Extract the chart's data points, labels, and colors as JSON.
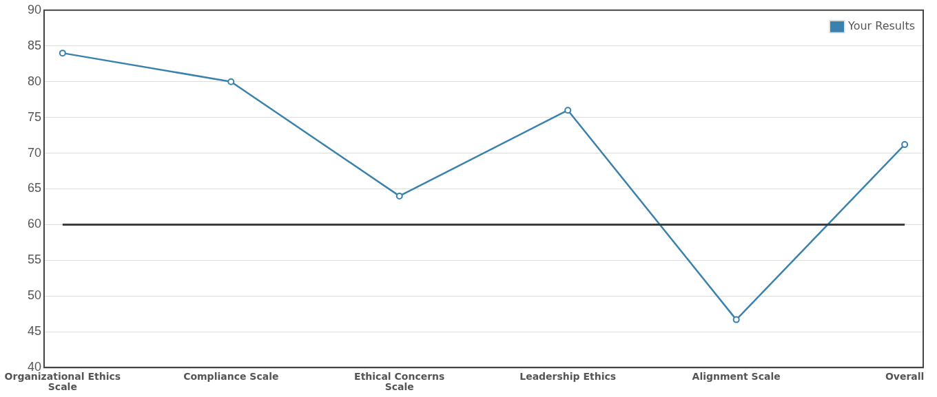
{
  "chart_data": {
    "type": "line",
    "categories": [
      "Organizational Ethics Scale",
      "Compliance Scale",
      "Ethical Concerns Scale",
      "Leadership Ethics",
      "Alignment Scale",
      "Overall"
    ],
    "series": [
      {
        "name": "Your Results",
        "color": "#3a82ad",
        "values": [
          84,
          80,
          64,
          76,
          46.7,
          71.2
        ]
      }
    ],
    "ylim": [
      40,
      90
    ],
    "yticks": [
      40,
      45,
      50,
      55,
      60,
      65,
      70,
      75,
      80,
      85,
      90
    ],
    "ref_lines": [
      {
        "axis": "y",
        "value": 60,
        "color": "#3c3c3c"
      }
    ],
    "grid": "y",
    "legend": "top right",
    "marker": "circle",
    "line_style": "solid"
  }
}
